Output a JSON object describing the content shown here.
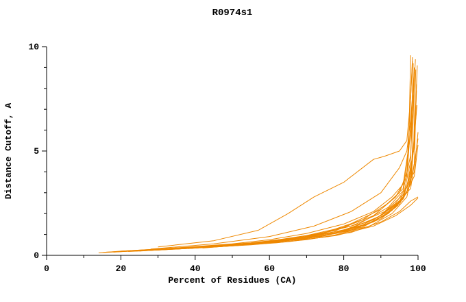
{
  "chart_data": {
    "type": "line",
    "title": "R0974s1",
    "xlabel": "Percent of Residues (CA)",
    "ylabel": "Distance Cutoff, A",
    "xlim": [
      0,
      100
    ],
    "ylim": [
      0,
      10
    ],
    "x_ticks_major": [
      0,
      20,
      40,
      60,
      80,
      100
    ],
    "x_ticks_minor": [
      10,
      30,
      50,
      70,
      90
    ],
    "y_ticks_major": [
      0,
      5,
      10
    ],
    "y_ticks_minor": [
      1,
      2,
      3,
      4,
      6,
      7,
      8,
      9
    ],
    "grid": false,
    "legend": "none",
    "line_color": "#EE8800",
    "axis_color": "#000000",
    "series": [
      [
        [
          14,
          0.12
        ],
        [
          20,
          0.2
        ],
        [
          30,
          0.3
        ],
        [
          40,
          0.42
        ],
        [
          50,
          0.55
        ],
        [
          60,
          0.75
        ],
        [
          70,
          1.05
        ],
        [
          80,
          1.5
        ],
        [
          88,
          2.1
        ],
        [
          93,
          2.8
        ],
        [
          96,
          3.4
        ],
        [
          97.5,
          5.2
        ],
        [
          98,
          9.6
        ]
      ],
      [
        [
          18,
          0.15
        ],
        [
          30,
          0.28
        ],
        [
          40,
          0.4
        ],
        [
          50,
          0.5
        ],
        [
          60,
          0.68
        ],
        [
          70,
          0.95
        ],
        [
          80,
          1.35
        ],
        [
          90,
          2.2
        ],
        [
          95,
          3.0
        ],
        [
          97,
          4.0
        ],
        [
          98.5,
          9.3
        ]
      ],
      [
        [
          22,
          0.18
        ],
        [
          35,
          0.3
        ],
        [
          45,
          0.42
        ],
        [
          55,
          0.58
        ],
        [
          65,
          0.8
        ],
        [
          75,
          1.1
        ],
        [
          85,
          1.7
        ],
        [
          92,
          2.5
        ],
        [
          96,
          3.2
        ],
        [
          98,
          5.8
        ],
        [
          99,
          9.0
        ]
      ],
      [
        [
          25,
          0.2
        ],
        [
          40,
          0.38
        ],
        [
          55,
          0.55
        ],
        [
          68,
          0.85
        ],
        [
          78,
          1.2
        ],
        [
          88,
          1.9
        ],
        [
          94,
          2.8
        ],
        [
          97,
          3.8
        ],
        [
          99,
          8.6
        ]
      ],
      [
        [
          30,
          0.4
        ],
        [
          45,
          0.7
        ],
        [
          57,
          1.2
        ],
        [
          65,
          2.0
        ],
        [
          72,
          2.8
        ],
        [
          80,
          3.5
        ],
        [
          88,
          4.6
        ],
        [
          91,
          4.75
        ],
        [
          95,
          5.0
        ],
        [
          97,
          5.5
        ],
        [
          98,
          7.5
        ],
        [
          98.5,
          9.5
        ]
      ],
      [
        [
          28,
          0.3
        ],
        [
          45,
          0.55
        ],
        [
          60,
          0.9
        ],
        [
          72,
          1.4
        ],
        [
          82,
          2.1
        ],
        [
          90,
          3.0
        ],
        [
          95,
          4.2
        ],
        [
          97,
          5.0
        ],
        [
          98,
          6.5
        ],
        [
          99,
          8.8
        ]
      ],
      [
        [
          20,
          0.2
        ],
        [
          35,
          0.35
        ],
        [
          50,
          0.5
        ],
        [
          65,
          0.75
        ],
        [
          78,
          1.1
        ],
        [
          88,
          1.7
        ],
        [
          94,
          2.4
        ],
        [
          98,
          3.2
        ],
        [
          100,
          5.6
        ]
      ],
      [
        [
          24,
          0.22
        ],
        [
          40,
          0.4
        ],
        [
          55,
          0.6
        ],
        [
          70,
          0.9
        ],
        [
          82,
          1.4
        ],
        [
          91,
          2.1
        ],
        [
          96,
          2.9
        ],
        [
          99,
          4.0
        ],
        [
          100,
          5.9
        ]
      ],
      [
        [
          30,
          0.25
        ],
        [
          50,
          0.45
        ],
        [
          65,
          0.65
        ],
        [
          78,
          0.95
        ],
        [
          88,
          1.4
        ],
        [
          94,
          1.9
        ],
        [
          98,
          2.4
        ],
        [
          100,
          2.75
        ]
      ],
      [
        [
          35,
          0.3
        ],
        [
          55,
          0.5
        ],
        [
          70,
          0.75
        ],
        [
          82,
          1.1
        ],
        [
          90,
          1.6
        ],
        [
          95,
          2.1
        ],
        [
          98,
          2.6
        ],
        [
          100,
          2.8
        ]
      ],
      [
        [
          16,
          0.15
        ],
        [
          30,
          0.27
        ],
        [
          45,
          0.4
        ],
        [
          60,
          0.6
        ],
        [
          75,
          0.95
        ],
        [
          85,
          1.45
        ],
        [
          92,
          2.1
        ],
        [
          96,
          2.8
        ],
        [
          98,
          4.5
        ],
        [
          98.7,
          9.2
        ]
      ],
      [
        [
          26,
          0.22
        ],
        [
          42,
          0.4
        ],
        [
          58,
          0.62
        ],
        [
          72,
          0.95
        ],
        [
          84,
          1.5
        ],
        [
          92,
          2.3
        ],
        [
          96,
          3.1
        ],
        [
          98,
          4.8
        ],
        [
          99.3,
          9.4
        ]
      ],
      [
        [
          32,
          0.28
        ],
        [
          50,
          0.5
        ],
        [
          66,
          0.78
        ],
        [
          80,
          1.2
        ],
        [
          89,
          1.8
        ],
        [
          94,
          2.5
        ],
        [
          97,
          3.3
        ],
        [
          99,
          5.2
        ],
        [
          99.6,
          7.9
        ]
      ],
      [
        [
          38,
          0.32
        ],
        [
          55,
          0.55
        ],
        [
          70,
          0.85
        ],
        [
          82,
          1.3
        ],
        [
          90,
          1.9
        ],
        [
          95,
          2.6
        ],
        [
          98,
          3.6
        ],
        [
          99.5,
          6.8
        ]
      ],
      [
        [
          20,
          0.18
        ],
        [
          38,
          0.33
        ],
        [
          55,
          0.52
        ],
        [
          70,
          0.8
        ],
        [
          83,
          1.25
        ],
        [
          91,
          1.9
        ],
        [
          96,
          2.7
        ],
        [
          98.3,
          4.2
        ],
        [
          99,
          8.4
        ]
      ],
      [
        [
          28,
          0.24
        ],
        [
          48,
          0.45
        ],
        [
          64,
          0.7
        ],
        [
          78,
          1.05
        ],
        [
          88,
          1.6
        ],
        [
          94,
          2.3
        ],
        [
          97.5,
          3.2
        ],
        [
          99,
          5.5
        ],
        [
          99.8,
          9.1
        ]
      ],
      [
        [
          42,
          0.35
        ],
        [
          60,
          0.6
        ],
        [
          74,
          0.9
        ],
        [
          85,
          1.35
        ],
        [
          92,
          2.0
        ],
        [
          96,
          2.7
        ],
        [
          99,
          3.8
        ],
        [
          100,
          5.3
        ]
      ],
      [
        [
          24,
          0.2
        ],
        [
          44,
          0.38
        ],
        [
          62,
          0.6
        ],
        [
          76,
          0.9
        ],
        [
          87,
          1.4
        ],
        [
          93,
          2.0
        ],
        [
          97,
          2.8
        ],
        [
          99,
          4.4
        ],
        [
          99.6,
          8.2
        ]
      ],
      [
        [
          34,
          0.3
        ],
        [
          52,
          0.5
        ],
        [
          68,
          0.78
        ],
        [
          81,
          1.15
        ],
        [
          90,
          1.75
        ],
        [
          95,
          2.45
        ],
        [
          98,
          3.4
        ],
        [
          99.7,
          7.2
        ]
      ],
      [
        [
          15,
          0.13
        ],
        [
          28,
          0.25
        ],
        [
          44,
          0.4
        ],
        [
          60,
          0.62
        ],
        [
          74,
          0.92
        ],
        [
          86,
          1.45
        ],
        [
          93,
          2.15
        ],
        [
          97,
          3.0
        ],
        [
          98.8,
          5.0
        ],
        [
          99.4,
          8.9
        ]
      ]
    ]
  }
}
